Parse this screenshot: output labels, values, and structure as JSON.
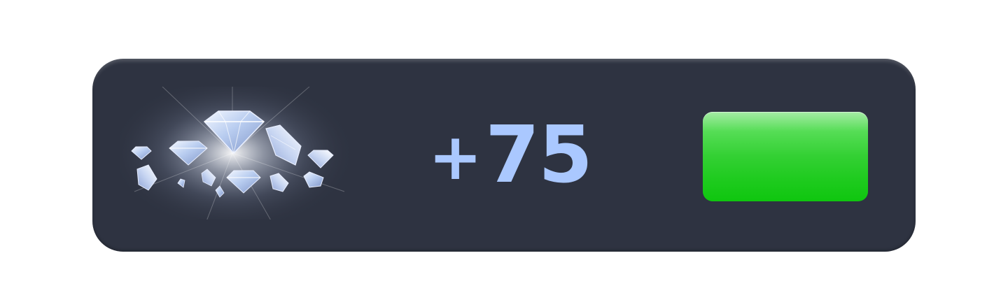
{
  "reward": {
    "amount_sign": "+",
    "amount_value": "75",
    "icon": "diamond-pile-icon",
    "button_label": ""
  },
  "colors": {
    "panel_bg": "#2e3341",
    "amount_text": "#aac8ff",
    "button_green": "#1fcb1f",
    "page_bg": "#ffffff"
  }
}
